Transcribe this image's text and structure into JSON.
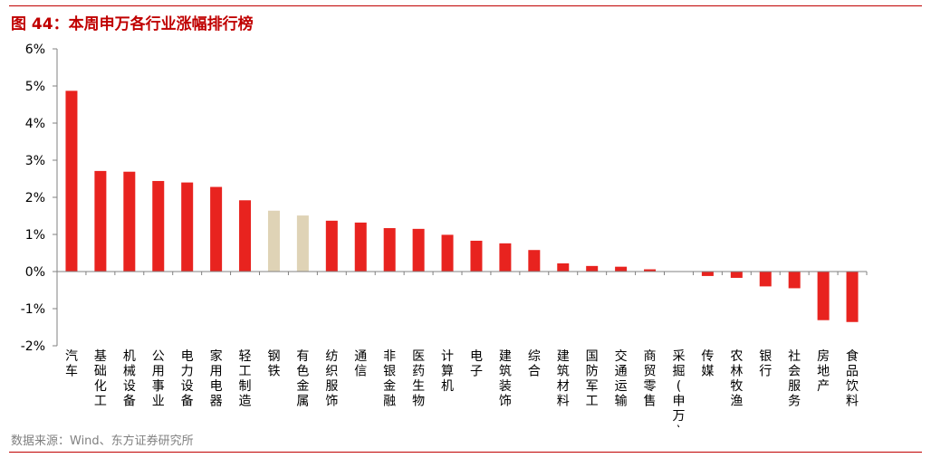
{
  "figure_title": "图 44：本周申万各行业涨幅排行榜",
  "source": "数据来源：Wind、东方证券研究所",
  "colors": {
    "accent": "#c00000",
    "bar": "#e8231f",
    "bar_highlight": "#dfd3b6",
    "axis": "#808080",
    "text": "#000000",
    "source": "#808080"
  },
  "chart_data": {
    "type": "bar",
    "title": "",
    "xlabel": "",
    "ylabel": "",
    "ylim": [
      -2,
      6
    ],
    "yticks": [
      6,
      5,
      4,
      3,
      2,
      1,
      0,
      -1,
      -2
    ],
    "ytick_labels": [
      "6%",
      "5%",
      "4%",
      "3%",
      "2%",
      "1%",
      "0%",
      "-1%",
      "-2%"
    ],
    "grid": false,
    "legend": "none",
    "categories": [
      "汽车",
      "基础化工",
      "机械设备",
      "公用事业",
      "电力设备",
      "家用电器",
      "轻工制造",
      "钢铁",
      "有色金属",
      "纺织服饰",
      "通信",
      "非银金融",
      "医药生物",
      "计算机",
      "电子",
      "建筑装饰",
      "综合",
      "建筑材料",
      "国防军工",
      "交通运输",
      "商贸零售",
      "采掘(申万)",
      "传媒",
      "农林牧渔",
      "银行",
      "社会服务",
      "房地产",
      "食品饮料"
    ],
    "values": [
      4.87,
      2.71,
      2.69,
      2.44,
      2.4,
      2.28,
      1.92,
      1.64,
      1.51,
      1.37,
      1.32,
      1.17,
      1.15,
      0.99,
      0.83,
      0.76,
      0.58,
      0.22,
      0.15,
      0.13,
      0.06,
      0.0,
      -0.12,
      -0.17,
      -0.4,
      -0.45,
      -1.31,
      -1.36
    ],
    "highlighted_categories": [
      "钢铁",
      "有色金属"
    ]
  }
}
